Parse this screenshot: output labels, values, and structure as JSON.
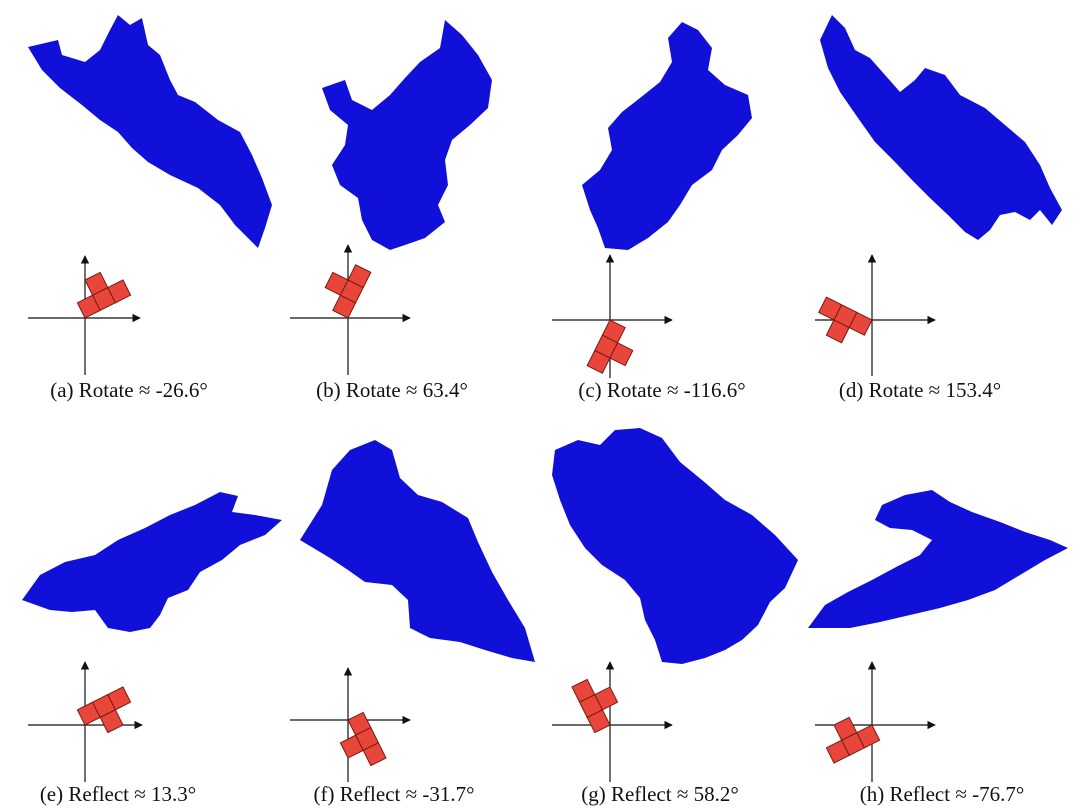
{
  "colors": {
    "fractal": "#1010d8",
    "tile": "#e8463a",
    "tile_stroke": "#7a1a12",
    "axis": "#111111"
  },
  "panels": [
    {
      "id": "a",
      "caption": "(a) Rotate  ≈ -26.6°",
      "transform": "rotate",
      "angle_deg": -26.6
    },
    {
      "id": "b",
      "caption": "(b) Rotate  ≈ 63.4°",
      "transform": "rotate",
      "angle_deg": 63.4
    },
    {
      "id": "c",
      "caption": "(c) Rotate  ≈ -116.6°",
      "transform": "rotate",
      "angle_deg": -116.6
    },
    {
      "id": "d",
      "caption": "(d) Rotate ≈ 153.4°",
      "transform": "rotate",
      "angle_deg": 153.4
    },
    {
      "id": "e",
      "caption": "(e) Reflect  ≈ 13.3°",
      "transform": "reflect",
      "angle_deg": 13.3
    },
    {
      "id": "f",
      "caption": "(f) Reflect  ≈ -31.7°",
      "transform": "reflect",
      "angle_deg": -31.7
    },
    {
      "id": "g",
      "caption": "(g) Reflect  ≈ 58.2°",
      "transform": "reflect",
      "angle_deg": 58.2
    },
    {
      "id": "h",
      "caption": "(h) Reflect  ≈ -76.7°",
      "transform": "reflect",
      "angle_deg": -76.7
    }
  ]
}
